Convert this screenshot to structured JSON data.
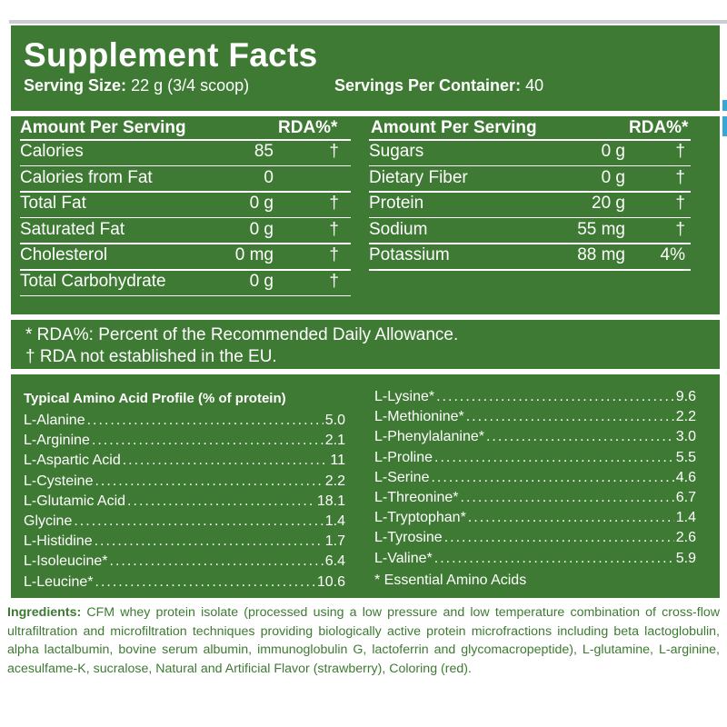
{
  "title": "Supplement Facts",
  "serving_size_label": "Serving Size:",
  "serving_size_value": "22 g (3/4 scoop)",
  "servings_per_container_label": "Servings Per Container:",
  "servings_per_container_value": "40",
  "left_header": {
    "amount": "Amount Per Serving",
    "rda": "RDA%*"
  },
  "right_header": {
    "amount": "Amount Per Serving",
    "rda": "RDA%*"
  },
  "left_rows": [
    {
      "name": "Calories",
      "value": "85",
      "rda": "†"
    },
    {
      "name": "Calories from Fat",
      "value": "0",
      "rda": ""
    },
    {
      "name": "Total Fat",
      "value": "0 g",
      "rda": "†"
    },
    {
      "name": "Saturated Fat",
      "value": "0 g",
      "rda": "†"
    },
    {
      "name": "Cholesterol",
      "value": "0 mg",
      "rda": "†"
    },
    {
      "name": "Total Carbohydrate",
      "value": "0 g",
      "rda": "†"
    }
  ],
  "right_rows": [
    {
      "name": "Sugars",
      "value": "0 g",
      "rda": "†"
    },
    {
      "name": "Dietary Fiber",
      "value": "0 g",
      "rda": "†"
    },
    {
      "name": "Protein",
      "value": "20 g",
      "rda": "†"
    },
    {
      "name": "Sodium",
      "value": "55 mg",
      "rda": "†"
    },
    {
      "name": "Potassium",
      "value": "88 mg",
      "rda": "4%"
    }
  ],
  "notes": {
    "rda_definition": "* RDA%: Percent of the Recommended Daily Allowance.",
    "rda_not_established": "† RDA not established in the EU."
  },
  "amino": {
    "heading": "Typical Amino Acid Profile (% of protein)",
    "left": [
      {
        "name": "L-Alanine",
        "value": "5.0"
      },
      {
        "name": "L-Arginine",
        "value": "2.1"
      },
      {
        "name": "L-Aspartic Acid",
        "value": "11"
      },
      {
        "name": "L-Cysteine",
        "value": "2.2"
      },
      {
        "name": "L-Glutamic Acid",
        "value": "18.1"
      },
      {
        "name": "Glycine",
        "value": "1.4"
      },
      {
        "name": "L-Histidine",
        "value": "1.7"
      },
      {
        "name": "L-Isoleucine*",
        "value": "6.4"
      },
      {
        "name": "L-Leucine*",
        "value": "10.6"
      }
    ],
    "right": [
      {
        "name": "L-Lysine*",
        "value": "9.6"
      },
      {
        "name": "L-Methionine*",
        "value": "2.2"
      },
      {
        "name": "L-Phenylalanine*",
        "value": "3.0"
      },
      {
        "name": "L-Proline",
        "value": "5.5"
      },
      {
        "name": "L-Serine",
        "value": "4.6"
      },
      {
        "name": "L-Threonine*",
        "value": "6.7"
      },
      {
        "name": "L-Tryptophan*",
        "value": "1.4"
      },
      {
        "name": "L-Tyrosine",
        "value": "2.6"
      },
      {
        "name": "L-Valine*",
        "value": "5.9"
      }
    ],
    "essential_note": "* Essential Amino Acids"
  },
  "ingredients": {
    "label": "Ingredients:",
    "text": "CFM whey protein isolate (processed using a low pressure and low temperature combination of cross-flow ultrafiltration and microfiltration techniques providing biologically active protein microfractions including beta lactoglobulin, alpha lactalbumin, bovine serum albumin, immunoglobulin G, lactoferrin and glycomacropeptide), L-glutamine, L-arginine, acesulfame-K, sucralose, Natural and Artificial Flavor (strawberry), Coloring (red)."
  },
  "colors": {
    "panel_green": "#3e7a33",
    "accent_blue": "#39a6d6",
    "frame_grey": "#c9cdd2"
  }
}
